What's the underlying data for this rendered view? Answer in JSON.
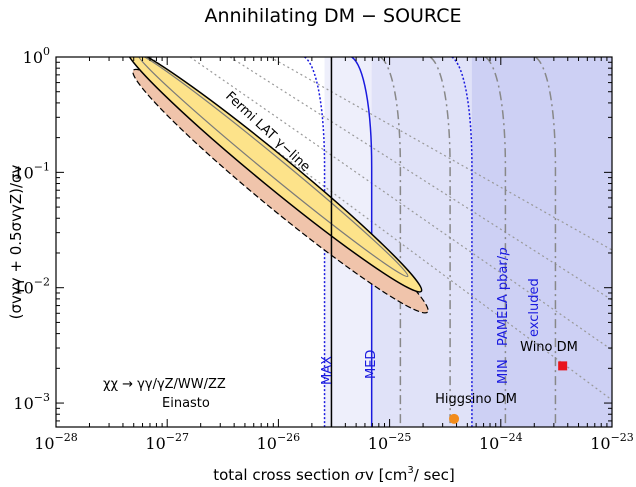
{
  "chart_data": {
    "type": "contour-exclusion",
    "title": "Annihilating DM − SOURCE",
    "xlabel": {
      "prefix": "total cross section ",
      "sym": "σ",
      "mid": "v [cm",
      "sup": "3",
      "suffix": "/ sec]"
    },
    "ylabel": "(σvγγ + 0.5σvγZ)/σv",
    "x_scale": "log",
    "y_scale": "log",
    "xlim": [
      1e-28,
      1e-23
    ],
    "ylim": [
      0.00062,
      1.0
    ],
    "x_ticks": [
      {
        "value": 1e-28,
        "base": "10",
        "exp": "−28"
      },
      {
        "value": 1e-27,
        "base": "10",
        "exp": "−27"
      },
      {
        "value": 1e-26,
        "base": "10",
        "exp": "−26"
      },
      {
        "value": 1e-25,
        "base": "10",
        "exp": "−25"
      },
      {
        "value": 1e-24,
        "base": "10",
        "exp": "−24"
      },
      {
        "value": 1e-23,
        "base": "10",
        "exp": "−23"
      }
    ],
    "y_ticks": [
      {
        "value": 0.001,
        "base": "10",
        "exp": "−3"
      },
      {
        "value": 0.01,
        "base": "10",
        "exp": "−2"
      },
      {
        "value": 0.1,
        "base": "10",
        "exp": "−1"
      },
      {
        "value": 1.0,
        "base": "10",
        "exp": "0"
      }
    ],
    "exclusion_bands": [
      {
        "name": "MAX",
        "x_start": 2.6e-26,
        "x_end": 1e-23,
        "color": "#eeeffb"
      },
      {
        "name": "MED",
        "x_start": 6.9e-26,
        "x_end": 1e-23,
        "color": "#e0e2f8"
      },
      {
        "name": "MIN",
        "x_start": 5.5e-25,
        "x_end": 1e-23,
        "color": "#cdd0f4"
      }
    ],
    "band_labels": {
      "max": "MAX",
      "med": "MED",
      "min": "MIN",
      "pamela_prefix": "PAMELA pbar/",
      "pamela_p": "p",
      "excluded": "excluded"
    },
    "fermi_line": {
      "label": "Fermi LAT γ−line",
      "axis_points": [
        [
          6e-28,
          0.9
        ],
        [
          1.4e-25,
          0.012
        ]
      ],
      "fill_color": "#fde38a",
      "extended_color": "#f0c4ab"
    },
    "thermal_cross_section": 3e-26,
    "points": [
      {
        "name": "Higgsino DM",
        "x": 3.8e-25,
        "y": 0.00073,
        "color": "#f28c1b",
        "marker": "circle"
      },
      {
        "name": "Wino DM",
        "x": 3.6e-24,
        "y": 0.0021,
        "color": "#e8141b",
        "marker": "square"
      }
    ],
    "channel_label": "χχ → γγ/γZ/WW/ZZ",
    "profile_label": "Einasto"
  }
}
